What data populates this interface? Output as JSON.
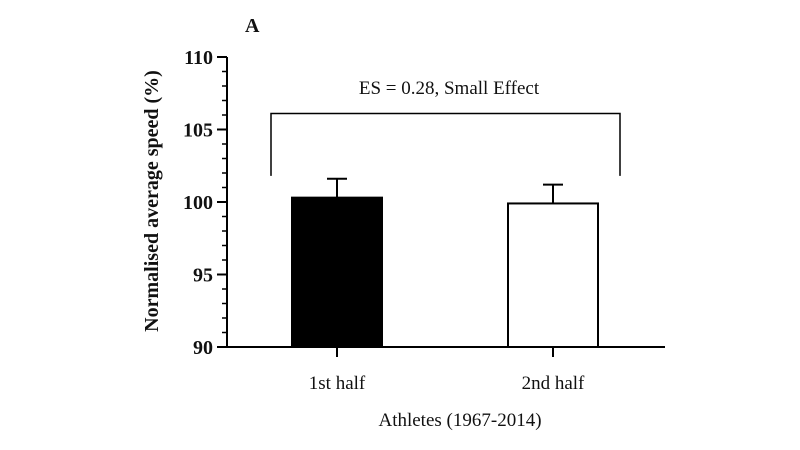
{
  "chart_data": {
    "type": "bar",
    "panel_label": "A",
    "categories": [
      "1st half",
      "2nd half"
    ],
    "values": [
      100.3,
      99.9
    ],
    "errors": [
      1.3,
      1.3
    ],
    "bar_fills": [
      "#000000",
      "#ffffff"
    ],
    "xlabel": "Athletes (1967-2014)",
    "ylabel": "Normalised average speed (%)",
    "ylim": [
      90,
      110
    ],
    "yticks_major": [
      90,
      95,
      100,
      105,
      110
    ],
    "minor_tick_step": 1,
    "annotation": "ES = 0.28, Small Effect",
    "bracket_y": 106.1,
    "bracket_end_y": 101.8,
    "grid": false,
    "legend": "none"
  }
}
